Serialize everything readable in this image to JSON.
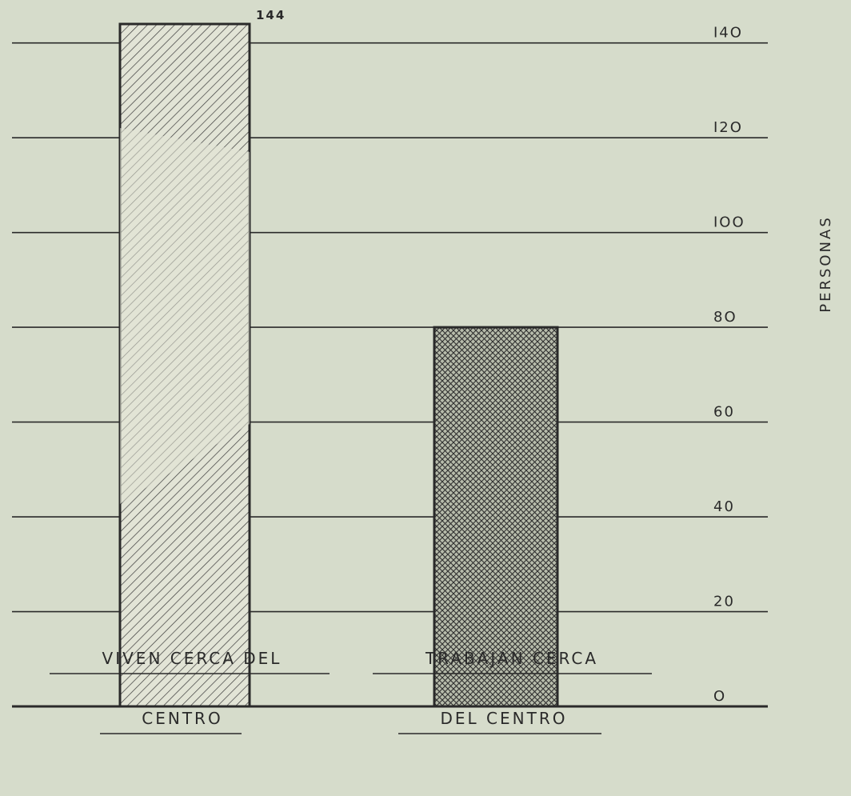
{
  "chart_data": {
    "type": "bar",
    "categories": [
      [
        "VIVEN CERCA DEL",
        "CENTRO"
      ],
      [
        "TRABAJAN CERCA",
        "DEL CENTRO"
      ]
    ],
    "values": [
      144,
      80
    ],
    "data_labels": [
      "144",
      ""
    ],
    "ylabel": "PERSONAS",
    "ylim": [
      0,
      144
    ],
    "yticks": [
      0,
      20,
      40,
      60,
      80,
      100,
      120,
      140
    ],
    "ytick_labels": [
      "O",
      "20",
      "40",
      "60",
      "8O",
      "IOO",
      "I2O",
      "I4O"
    ],
    "grid": true,
    "axis_side": "right",
    "colors": {
      "background": "#d6dccb",
      "ink": "#2a2a2a",
      "bar1_fill": "#e2e4d6",
      "bar2_fill": "#9aa08f"
    },
    "patterns": [
      "diagonal-hatch",
      "cross-hatch"
    ]
  }
}
